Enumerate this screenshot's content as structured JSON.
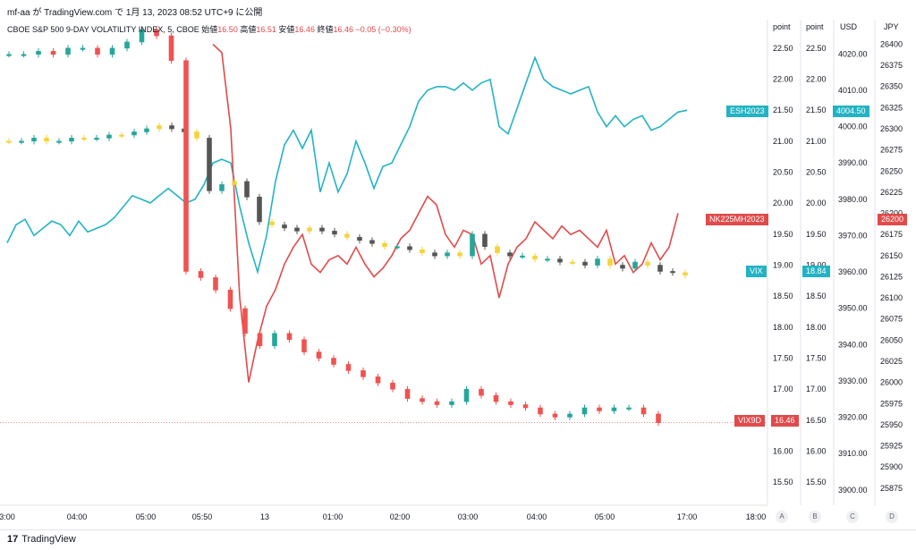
{
  "header": {
    "title": "mf-aa が TradingView.com で 1月 13, 2023 08:52 UTC+9 に公開"
  },
  "legend": {
    "symbol": "CBOE S&P 500 9-DAY VOLATILITY INDEX, 5, CBOE",
    "open_label": "始値",
    "open_value": "16.50",
    "high_label": "高値",
    "high_value": "16.51",
    "low_label": "安値",
    "low_value": "16.46",
    "close_label": "終値",
    "close_value": "16.46",
    "change": "−0.05 (−0.30%)"
  },
  "axes": {
    "heads": [
      "point",
      "point",
      "USD",
      "JPY"
    ],
    "bottom_ids": [
      "A",
      "B",
      "C",
      "D"
    ]
  },
  "tags": {
    "esh": "ESH2023",
    "esh_value": "4004.50",
    "nk": "NK225MH2023",
    "nk_value": "26200",
    "vix": "VIX",
    "vix_value": "18.84",
    "vix9d": "VIX9D",
    "vix9d_value": "16.46"
  },
  "footer": {
    "brand": "TradingView",
    "logo": "17"
  },
  "colors": {
    "teal": "#22b3c4",
    "red": "#e04a4a",
    "up": "#26a69a",
    "down": "#ef5350",
    "yellow": "#f5d33b"
  },
  "chart_data": {
    "type": "line",
    "x_tick_labels": [
      "3:00",
      "04:00",
      "05:00",
      "05:50",
      "13",
      "01:00",
      "02:00",
      "03:00",
      "04:00",
      "05:00",
      "17:00",
      "18:00"
    ],
    "axis_point_a": {
      "label": "point",
      "ticks": [
        15.5,
        16.0,
        16.5,
        17.0,
        17.5,
        18.0,
        18.5,
        19.0,
        19.5,
        20.0,
        20.5,
        21.0,
        21.5,
        22.0,
        22.5
      ],
      "ylim": [
        15.2,
        22.7
      ]
    },
    "axis_point_b": {
      "label": "point",
      "ticks": [
        15.5,
        16.0,
        16.5,
        17.0,
        17.5,
        18.0,
        18.5,
        19.0,
        19.5,
        20.0,
        20.5,
        21.0,
        21.5,
        22.0,
        22.5
      ]
    },
    "axis_usd": {
      "label": "USD",
      "ticks": [
        3900.0,
        3910.0,
        3920.0,
        3930.0,
        3940.0,
        3950.0,
        3960.0,
        3970.0,
        3980.0,
        3990.0,
        4000.0,
        4010.0,
        4020.0
      ],
      "ylim": [
        3897,
        4025
      ]
    },
    "axis_jpy": {
      "label": "JPY",
      "ticks": [
        25875,
        25900,
        25925,
        25950,
        25975,
        26000,
        26025,
        26050,
        26075,
        26100,
        26125,
        26150,
        26175,
        26200,
        26225,
        26250,
        26275,
        26300,
        26325,
        26350,
        26375,
        26400
      ],
      "ylim": [
        25860,
        26410
      ]
    },
    "series": [
      {
        "name": "ESH2023",
        "axis": "USD",
        "last": 4004.5,
        "points": [
          [
            0,
            3968
          ],
          [
            10,
            3973
          ],
          [
            20,
            3974.5
          ],
          [
            30,
            3970
          ],
          [
            40,
            3972
          ],
          [
            50,
            3974
          ],
          [
            60,
            3973
          ],
          [
            70,
            3970
          ],
          [
            80,
            3974
          ],
          [
            90,
            3971
          ],
          [
            100,
            3972
          ],
          [
            110,
            3973
          ],
          [
            120,
            3975
          ],
          [
            130,
            3978
          ],
          [
            140,
            3981
          ],
          [
            150,
            3980
          ],
          [
            160,
            3979
          ],
          [
            170,
            3981
          ],
          [
            180,
            3983
          ],
          [
            190,
            3981
          ],
          [
            200,
            3979
          ],
          [
            210,
            3980
          ],
          [
            220,
            3984
          ],
          [
            230,
            3990
          ],
          [
            240,
            3991
          ],
          [
            250,
            3990
          ],
          [
            260,
            3978
          ],
          [
            270,
            3968
          ],
          [
            280,
            3960
          ],
          [
            290,
            3970
          ],
          [
            300,
            3985
          ],
          [
            310,
            3995
          ],
          [
            320,
            3999
          ],
          [
            330,
            3994
          ],
          [
            340,
            3999
          ],
          [
            350,
            3982
          ],
          [
            360,
            3990
          ],
          [
            370,
            3982
          ],
          [
            380,
            3987
          ],
          [
            390,
            3996
          ],
          [
            400,
            3990
          ],
          [
            410,
            3983
          ],
          [
            420,
            3989
          ],
          [
            430,
            3990
          ],
          [
            440,
            3995
          ],
          [
            450,
            4000
          ],
          [
            460,
            4007
          ],
          [
            470,
            4010
          ],
          [
            480,
            4011
          ],
          [
            490,
            4011
          ],
          [
            500,
            4010
          ],
          [
            510,
            4012
          ],
          [
            520,
            4010
          ],
          [
            530,
            4012
          ],
          [
            540,
            4013
          ],
          [
            550,
            4000
          ],
          [
            560,
            3998
          ],
          [
            570,
            4005
          ],
          [
            580,
            4012
          ],
          [
            590,
            4019
          ],
          [
            600,
            4013
          ],
          [
            610,
            4011
          ],
          [
            620,
            4010
          ],
          [
            630,
            4009
          ],
          [
            640,
            4010
          ],
          [
            650,
            4011
          ],
          [
            660,
            4004
          ],
          [
            670,
            4000
          ],
          [
            680,
            4003
          ],
          [
            690,
            4000
          ],
          [
            700,
            4002
          ],
          [
            710,
            4003
          ],
          [
            720,
            3999
          ],
          [
            730,
            4000
          ],
          [
            740,
            4002
          ],
          [
            750,
            4004
          ],
          [
            760,
            4004.5
          ]
        ]
      },
      {
        "name": "NK225MH2023",
        "axis": "JPY",
        "last": 26200,
        "points": [
          [
            230,
            26400
          ],
          [
            240,
            26390
          ],
          [
            250,
            26300
          ],
          [
            260,
            26100
          ],
          [
            270,
            26000
          ],
          [
            280,
            26050
          ],
          [
            290,
            26090
          ],
          [
            300,
            26110
          ],
          [
            310,
            26140
          ],
          [
            320,
            26160
          ],
          [
            330,
            26175
          ],
          [
            340,
            26140
          ],
          [
            350,
            26130
          ],
          [
            360,
            26145
          ],
          [
            370,
            26150
          ],
          [
            380,
            26140
          ],
          [
            390,
            26160
          ],
          [
            400,
            26140
          ],
          [
            410,
            26125
          ],
          [
            420,
            26135
          ],
          [
            430,
            26150
          ],
          [
            440,
            26170
          ],
          [
            450,
            26180
          ],
          [
            460,
            26200
          ],
          [
            470,
            26220
          ],
          [
            480,
            26210
          ],
          [
            490,
            26175
          ],
          [
            500,
            26160
          ],
          [
            510,
            26180
          ],
          [
            520,
            26175
          ],
          [
            530,
            26140
          ],
          [
            540,
            26150
          ],
          [
            550,
            26100
          ],
          [
            560,
            26140
          ],
          [
            570,
            26160
          ],
          [
            580,
            26170
          ],
          [
            590,
            26190
          ],
          [
            600,
            26180
          ],
          [
            610,
            26170
          ],
          [
            620,
            26185
          ],
          [
            630,
            26175
          ],
          [
            640,
            26180
          ],
          [
            650,
            26170
          ],
          [
            660,
            26160
          ],
          [
            670,
            26180
          ],
          [
            680,
            26140
          ],
          [
            690,
            26150
          ],
          [
            700,
            26130
          ],
          [
            710,
            26140
          ],
          [
            720,
            26165
          ],
          [
            730,
            26145
          ],
          [
            740,
            26160
          ],
          [
            750,
            26200
          ]
        ]
      }
    ],
    "candles": [
      {
        "name": "VIX",
        "axis": "point",
        "last": 18.84,
        "approx_closes": [
          21.0,
          21.0,
          21.05,
          21.0,
          21.0,
          21.05,
          21.05,
          21.05,
          21.1,
          21.1,
          21.15,
          21.2,
          21.25,
          21.2,
          21.15,
          21.05,
          20.2,
          20.3,
          20.35,
          20.1,
          19.7,
          19.65,
          19.6,
          19.55,
          19.6,
          19.55,
          19.5,
          19.45,
          19.4,
          19.35,
          19.3,
          19.3,
          19.25,
          19.2,
          19.15,
          19.2,
          19.15,
          19.5,
          19.3,
          19.2,
          19.15,
          19.15,
          19.1,
          19.1,
          19.05,
          19.05,
          19.0,
          19.1,
          19.0,
          18.95,
          19.05,
          19.0,
          18.9,
          18.88,
          18.84
        ]
      },
      {
        "name": "VIX9D",
        "axis": "point",
        "open": 16.5,
        "high": 16.51,
        "low": 16.46,
        "close": 16.46,
        "change": -0.05,
        "change_pct": -0.3,
        "approx_closes": [
          22.4,
          22.4,
          22.45,
          22.4,
          22.5,
          22.5,
          22.4,
          22.5,
          22.6,
          22.8,
          22.7,
          22.3,
          18.9,
          18.8,
          18.6,
          18.3,
          17.9,
          17.7,
          17.9,
          17.8,
          17.6,
          17.5,
          17.4,
          17.3,
          17.2,
          17.1,
          17.0,
          16.85,
          16.8,
          16.75,
          16.8,
          17.0,
          16.9,
          16.8,
          16.75,
          16.7,
          16.6,
          16.55,
          16.6,
          16.7,
          16.65,
          16.7,
          16.7,
          16.6,
          16.46
        ]
      }
    ],
    "grid": false,
    "legend_position": "top-left"
  }
}
